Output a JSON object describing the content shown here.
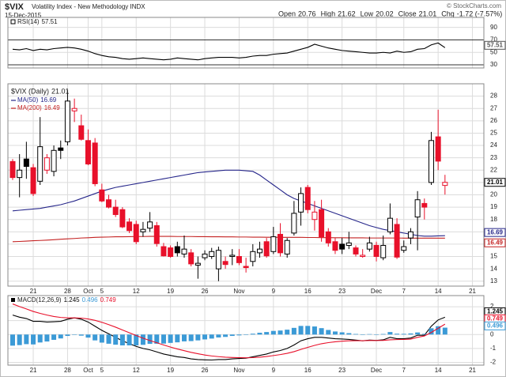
{
  "header": {
    "title": "$VIX",
    "subtitle": "Volatility Index - New Methodology INDX",
    "date": "15-Dec-2015",
    "open_label": "Open",
    "high_label": "High",
    "low_label": "Low",
    "close_label": "Close",
    "change_label": "Chg",
    "change": "-1.72 (-7.57%)",
    "copyright": "© StockCharts.com"
  },
  "chart_data": [
    {
      "type": "line",
      "ylim": [
        25,
        106
      ],
      "yticks": [
        30,
        50,
        70,
        90
      ],
      "bands": [
        30,
        70
      ],
      "grid": true,
      "series": [
        {
          "name": "RSI(14)",
          "color": "#000000",
          "values": [
            55,
            54,
            56,
            53,
            55,
            54,
            56,
            57,
            58,
            57,
            55,
            52,
            48,
            45,
            43,
            42,
            40,
            39,
            40,
            41,
            40,
            39,
            38,
            39,
            41,
            40,
            39,
            38,
            40,
            41,
            42,
            42,
            42,
            41,
            42,
            44,
            45,
            45,
            47,
            48,
            49,
            52,
            55,
            58,
            63,
            60,
            57,
            55,
            53,
            52,
            51,
            50,
            49,
            49,
            50,
            49,
            52,
            50,
            51,
            55,
            56,
            62,
            65,
            57.51,
            null,
            null,
            null,
            null
          ]
        }
      ]
    },
    {
      "type": "candlestick",
      "title": "$VIX (Daily)",
      "ylim": [
        12.6,
        29.0
      ],
      "yticks": [
        13,
        14,
        15,
        16,
        17,
        18,
        19,
        20,
        21,
        22,
        23,
        24,
        25,
        26,
        27,
        28
      ],
      "grid": true,
      "up_color": "#000000",
      "down_color": "#e8102a",
      "categories": [
        null,
        null,
        null,
        "21",
        null,
        null,
        null,
        null,
        "28",
        null,
        null,
        "Oct",
        null,
        "5",
        null,
        null,
        null,
        null,
        "12",
        null,
        null,
        null,
        null,
        "19",
        null,
        null,
        null,
        null,
        "26",
        null,
        null,
        null,
        null,
        "Nov",
        null,
        null,
        null,
        null,
        "9",
        null,
        null,
        null,
        null,
        "16",
        null,
        null,
        null,
        null,
        "23",
        null,
        null,
        null,
        null,
        "Dec",
        null,
        null,
        null,
        "7",
        null,
        null,
        null,
        null,
        "14",
        null,
        null,
        null,
        null,
        "21"
      ],
      "open": [
        22.7,
        21.4,
        22.9,
        22.2,
        21.1,
        22.0,
        21.9,
        23.8,
        24.3,
        26.8,
        25.6,
        24.4,
        24.2,
        20.4,
        19.6,
        19.0,
        18.8,
        17.8,
        17.6,
        17.0,
        17.3,
        17.5,
        15.8,
        15.7,
        15.8,
        15.2,
        15.3,
        14.3,
        14.9,
        15.0,
        14.0,
        14.6,
        15.0,
        15.0,
        14.2,
        14.6,
        15.3,
        16.2,
        15.4,
        16.8,
        15.2,
        16.9,
        18.6,
        20.6,
        18.0,
        18.8,
        17.0,
        16.2,
        16.0,
        15.9,
        15.7,
        15.0,
        15.6,
        15.9,
        14.9,
        17.0,
        17.6,
        15.5,
        16.5,
        18.2,
        19.3,
        21.0,
        24.7,
        20.76,
        null,
        null,
        null,
        null
      ],
      "high": [
        22.9,
        23.3,
        24.3,
        22.5,
        26.3,
        23.3,
        24.0,
        24.4,
        28.5,
        27.8,
        26.5,
        25.3,
        24.6,
        20.9,
        20.0,
        19.6,
        19.0,
        18.1,
        17.9,
        17.8,
        18.6,
        17.8,
        16.1,
        15.9,
        16.2,
        16.7,
        15.6,
        15.0,
        15.5,
        15.7,
        15.8,
        15.0,
        15.6,
        15.6,
        14.9,
        16.0,
        16.2,
        16.5,
        17.4,
        17.7,
        16.5,
        19.5,
        20.6,
        20.8,
        19.5,
        19.6,
        17.3,
        16.5,
        16.5,
        17.0,
        15.9,
        15.6,
        16.6,
        16.2,
        16.7,
        19.3,
        18.1,
        16.3,
        17.3,
        20.3,
        19.7,
        25.1,
        26.9,
        21.62,
        null,
        null,
        null,
        null
      ],
      "low": [
        21.2,
        19.8,
        21.3,
        19.9,
        20.8,
        21.7,
        21.5,
        22.9,
        24.0,
        25.9,
        24.4,
        22.4,
        20.7,
        19.4,
        18.9,
        18.2,
        17.3,
        16.9,
        16.0,
        16.6,
        17.0,
        15.8,
        15.0,
        14.9,
        15.0,
        14.9,
        14.2,
        13.2,
        14.7,
        14.8,
        13.0,
        14.0,
        14.3,
        14.3,
        13.7,
        14.2,
        14.9,
        14.9,
        15.2,
        15.0,
        14.9,
        16.7,
        17.5,
        18.5,
        17.1,
        16.2,
        15.8,
        15.2,
        15.2,
        15.6,
        15.0,
        14.9,
        15.4,
        14.6,
        14.7,
        16.8,
        14.8,
        15.3,
        16.0,
        15.5,
        18.0,
        20.8,
        22.0,
        20.02,
        null,
        null,
        null,
        null
      ],
      "close": [
        21.4,
        22.0,
        22.3,
        20.1,
        23.9,
        23.0,
        23.6,
        23.6,
        27.6,
        27.0,
        24.5,
        22.5,
        20.9,
        19.5,
        19.0,
        18.4,
        17.4,
        17.1,
        16.2,
        17.2,
        17.8,
        16.05,
        15.05,
        15.0,
        15.3,
        15.6,
        14.4,
        14.45,
        15.2,
        15.4,
        15.5,
        14.35,
        15.1,
        14.5,
        14.1,
        15.4,
        15.6,
        15.05,
        16.6,
        15.3,
        16.3,
        18.5,
        20.1,
        18.8,
        18.6,
        16.6,
        16.1,
        15.5,
        15.6,
        16.1,
        15.2,
        15.1,
        16.1,
        15.0,
        15.9,
        18.1,
        14.95,
        15.8,
        17.0,
        19.6,
        19.0,
        24.4,
        22.73,
        21.01,
        null,
        null,
        null,
        null
      ],
      "series": [
        {
          "name": "MA(50)",
          "color": "#26268a",
          "values": [
            18.7,
            18.75,
            18.8,
            18.85,
            18.9,
            19.0,
            19.1,
            19.2,
            19.35,
            19.5,
            19.7,
            19.9,
            20.1,
            20.3,
            20.45,
            20.6,
            20.7,
            20.8,
            20.9,
            21.0,
            21.1,
            21.2,
            21.3,
            21.4,
            21.5,
            21.6,
            21.7,
            21.8,
            21.85,
            21.9,
            21.95,
            22.0,
            22.0,
            22.0,
            21.95,
            21.9,
            21.6,
            21.2,
            20.8,
            20.4,
            20.0,
            19.7,
            19.5,
            19.3,
            19.1,
            18.9,
            18.7,
            18.5,
            18.3,
            18.1,
            17.9,
            17.7,
            17.5,
            17.35,
            17.2,
            17.1,
            17.0,
            16.9,
            16.8,
            16.7,
            16.65,
            16.65,
            16.67,
            16.69,
            null,
            null,
            null,
            null
          ]
        },
        {
          "name": "MA(200)",
          "color": "#c42222",
          "values": [
            16.2,
            16.22,
            16.25,
            16.28,
            16.3,
            16.33,
            16.36,
            16.4,
            16.43,
            16.46,
            16.5,
            16.52,
            16.55,
            16.57,
            16.58,
            16.6,
            16.6,
            16.61,
            16.62,
            16.62,
            16.63,
            16.63,
            16.63,
            16.63,
            16.62,
            16.62,
            16.62,
            16.61,
            16.61,
            16.6,
            16.6,
            16.59,
            16.59,
            16.58,
            16.58,
            16.57,
            16.57,
            16.56,
            16.56,
            16.55,
            16.55,
            16.55,
            16.55,
            16.54,
            16.54,
            16.53,
            16.53,
            16.52,
            16.52,
            16.51,
            16.51,
            16.51,
            16.5,
            16.5,
            16.5,
            16.5,
            16.5,
            16.49,
            16.49,
            16.49,
            16.49,
            16.49,
            16.49,
            16.49,
            null,
            null,
            null,
            null
          ]
        }
      ]
    },
    {
      "type": "line",
      "title": "MACD(12,26,9)",
      "ylim": [
        -2.2,
        2.8
      ],
      "yticks": [
        -2,
        -1,
        0,
        1,
        2
      ],
      "grid": true,
      "categories": [
        null,
        null,
        null,
        "21",
        null,
        null,
        null,
        null,
        "28",
        null,
        null,
        "Oct",
        null,
        "5",
        null,
        null,
        null,
        null,
        "12",
        null,
        null,
        null,
        null,
        "19",
        null,
        null,
        null,
        null,
        "26",
        null,
        null,
        null,
        null,
        "Nov",
        null,
        null,
        null,
        null,
        "9",
        null,
        null,
        null,
        null,
        "16",
        null,
        null,
        null,
        null,
        "23",
        null,
        null,
        null,
        null,
        "Dec",
        null,
        null,
        null,
        "7",
        null,
        null,
        null,
        null,
        "14",
        null,
        null,
        null,
        null,
        "21"
      ],
      "series": [
        {
          "color": "#000000",
          "style": "line",
          "values": [
            1.4,
            1.25,
            1.15,
            0.95,
            0.95,
            0.9,
            0.92,
            0.95,
            1.1,
            1.2,
            1.1,
            0.9,
            0.6,
            0.3,
            0.05,
            -0.2,
            -0.45,
            -0.65,
            -0.85,
            -1.0,
            -1.1,
            -1.25,
            -1.4,
            -1.5,
            -1.6,
            -1.65,
            -1.75,
            -1.8,
            -1.82,
            -1.83,
            -1.8,
            -1.8,
            -1.75,
            -1.72,
            -1.7,
            -1.6,
            -1.5,
            -1.4,
            -1.25,
            -1.15,
            -1.0,
            -0.75,
            -0.45,
            -0.3,
            -0.2,
            -0.2,
            -0.25,
            -0.3,
            -0.32,
            -0.35,
            -0.4,
            -0.45,
            -0.4,
            -0.42,
            -0.38,
            -0.2,
            -0.3,
            -0.3,
            -0.25,
            -0.05,
            -0.05,
            0.6,
            1.05,
            1.245,
            null,
            null,
            null,
            null
          ]
        },
        {
          "color": "#3b9ad6",
          "style": "bar",
          "values": [
            -0.8,
            -0.76,
            -0.69,
            -0.71,
            -0.57,
            -0.5,
            -0.38,
            -0.28,
            -0.1,
            0.0,
            -0.08,
            -0.22,
            -0.42,
            -0.58,
            -0.66,
            -0.73,
            -0.78,
            -0.78,
            -0.78,
            -0.74,
            -0.67,
            -0.66,
            -0.65,
            -0.6,
            -0.56,
            -0.49,
            -0.47,
            -0.42,
            -0.35,
            -0.29,
            -0.21,
            -0.17,
            -0.1,
            -0.06,
            -0.03,
            0.06,
            0.13,
            0.18,
            0.26,
            0.29,
            0.35,
            0.48,
            0.62,
            0.62,
            0.58,
            0.46,
            0.33,
            0.22,
            0.16,
            0.1,
            0.04,
            -0.01,
            0.03,
            0.01,
            0.04,
            0.18,
            0.06,
            0.05,
            0.08,
            0.15,
            0.05,
            0.45,
            0.6,
            0.496,
            null,
            null,
            null,
            null
          ]
        },
        {
          "color": "#e8102a",
          "style": "line",
          "values": [
            2.2,
            2.01,
            1.84,
            1.66,
            1.52,
            1.4,
            1.3,
            1.23,
            1.2,
            1.2,
            1.18,
            1.12,
            1.02,
            0.88,
            0.71,
            0.53,
            0.33,
            0.13,
            -0.07,
            -0.26,
            -0.43,
            -0.59,
            -0.75,
            -0.9,
            -1.04,
            -1.16,
            -1.28,
            -1.38,
            -1.47,
            -1.54,
            -1.59,
            -1.63,
            -1.65,
            -1.66,
            -1.67,
            -1.66,
            -1.63,
            -1.58,
            -1.51,
            -1.44,
            -1.35,
            -1.23,
            -1.07,
            -0.92,
            -0.78,
            -0.66,
            -0.58,
            -0.52,
            -0.48,
            -0.45,
            -0.44,
            -0.44,
            -0.43,
            -0.43,
            -0.42,
            -0.38,
            -0.36,
            -0.35,
            -0.33,
            -0.2,
            -0.1,
            0.15,
            0.45,
            0.749,
            null,
            null,
            null,
            null
          ]
        }
      ]
    }
  ]
}
